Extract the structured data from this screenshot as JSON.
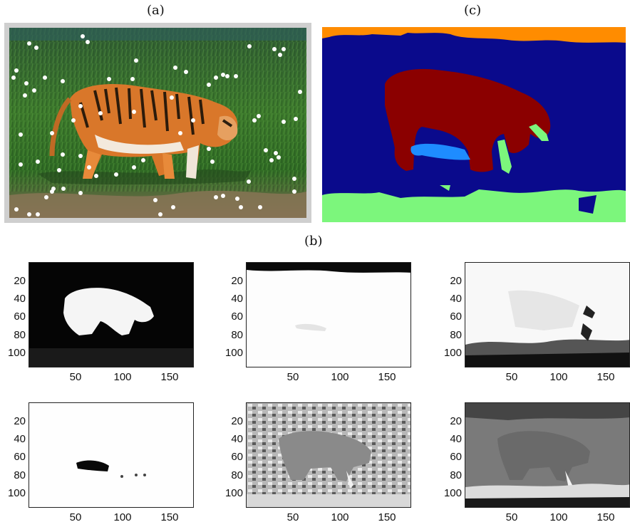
{
  "labels": {
    "a": "(a)",
    "b": "(b)",
    "c": "(c)"
  },
  "segmentation_colors": {
    "background": "#0a0a8c",
    "tiger": "#8b0000",
    "shadow": "#1e8cff",
    "grass_bottom": "#7cf67c",
    "top_strip": "#ff8c00"
  },
  "subplots": {
    "y_ticks": [
      "20",
      "40",
      "60",
      "80",
      "100"
    ],
    "x_ticks": [
      "50",
      "100",
      "150"
    ],
    "items": [
      {
        "name": "plot-1",
        "style": "dark"
      },
      {
        "name": "plot-2",
        "style": "white"
      },
      {
        "name": "plot-3",
        "style": "light"
      },
      {
        "name": "plot-4",
        "style": "white-shadow"
      },
      {
        "name": "plot-5",
        "style": "mid-noisy"
      },
      {
        "name": "plot-6",
        "style": "mid-gray"
      }
    ]
  }
}
